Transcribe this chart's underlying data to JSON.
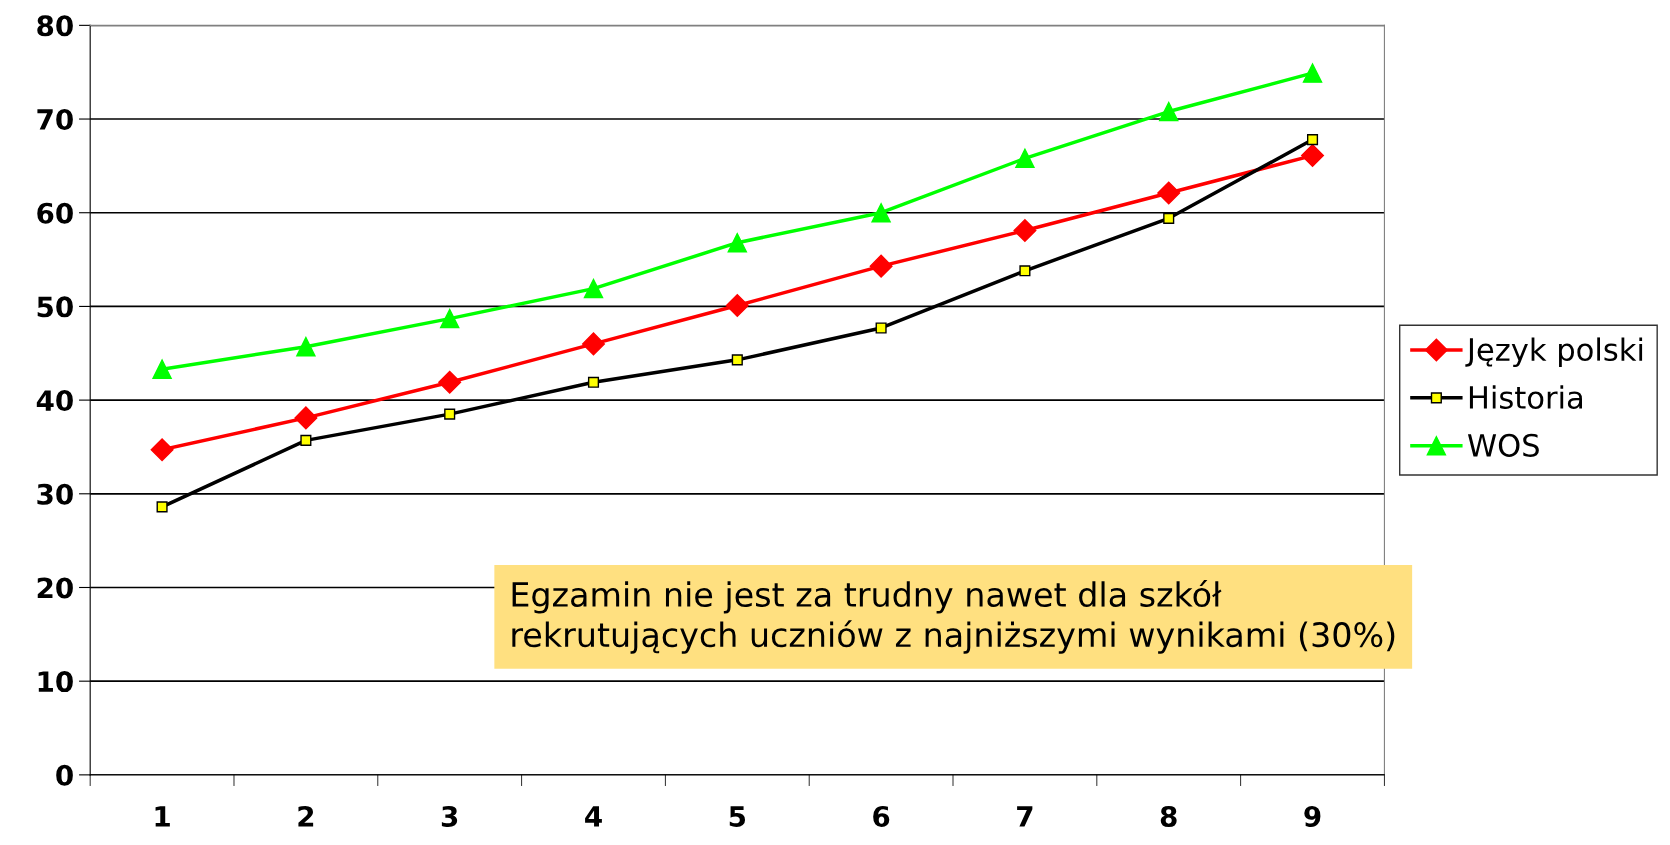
{
  "chart_data": {
    "type": "line",
    "categories": [
      "1",
      "2",
      "3",
      "4",
      "5",
      "6",
      "7",
      "8",
      "9"
    ],
    "series": [
      {
        "name": "Język polski",
        "color": "#ff0000",
        "marker": "diamond",
        "values": [
          34.7,
          38.1,
          41.9,
          46.0,
          50.1,
          54.3,
          58.1,
          62.1,
          66.1
        ]
      },
      {
        "name": "Historia",
        "color": "#000000",
        "marker": "square",
        "values": [
          28.6,
          35.7,
          38.5,
          41.9,
          44.3,
          47.7,
          53.8,
          59.4,
          67.8
        ]
      },
      {
        "name": "WOS",
        "color": "#00ff00",
        "marker": "triangle",
        "values": [
          43.3,
          45.7,
          48.7,
          51.9,
          56.8,
          60.0,
          65.8,
          70.8,
          74.9
        ]
      }
    ],
    "ylim": [
      0,
      80
    ],
    "yticks": [
      0,
      10,
      20,
      30,
      40,
      50,
      60,
      70,
      80
    ],
    "grid": "y",
    "legend": "right",
    "annotations": [
      "Egzamin nie jest za trudny nawet dla szkół\nrekrutujących uczniów z najniższymi wynikami (30%)"
    ]
  }
}
